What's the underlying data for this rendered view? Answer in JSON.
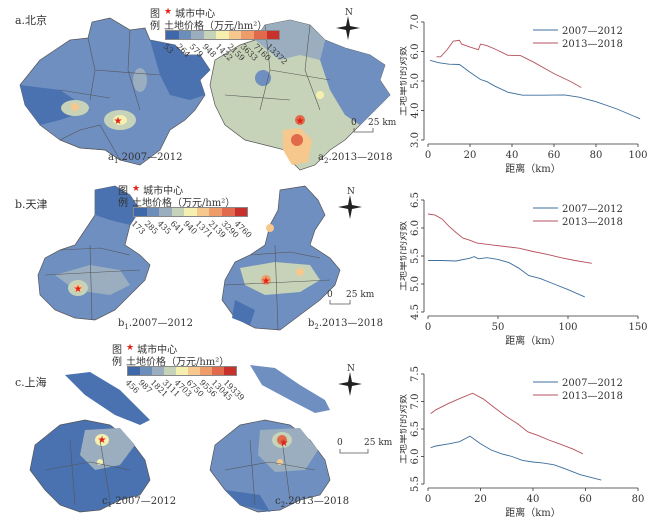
{
  "figure": {
    "rows": [
      {
        "label": "a.北京",
        "map_captions": [
          {
            "prefix": "a",
            "sub": "1",
            "text": ".2007—2012"
          },
          {
            "prefix": "a",
            "sub": "2",
            "text": ".2013—2018"
          }
        ],
        "legend": {
          "title_char_1": "图",
          "title_char_2": "例",
          "center_label": "城市中心",
          "price_label": "土地价格（万元/hm²）",
          "breaks": [
            "53",
            "264",
            "579",
            "948",
            "1422",
            "2159",
            "3633",
            "7160",
            "13372"
          ]
        },
        "scale": {
          "zero": "0",
          "dist": "25 km"
        },
        "north": "N"
      },
      {
        "label": "b.天津",
        "map_captions": [
          {
            "prefix": "b",
            "sub": "1",
            "text": ".2007—2012"
          },
          {
            "prefix": "b",
            "sub": "2",
            "text": ".2013—2018"
          }
        ],
        "legend": {
          "title_char_1": "图",
          "title_char_2": "例",
          "center_label": "城市中心",
          "price_label": "土地价格（万元/hm²）",
          "breaks": [
            "173",
            "285",
            "435",
            "641",
            "940",
            "1371",
            "2139",
            "3290",
            "4760"
          ]
        },
        "scale": {
          "zero": "0",
          "dist": "25 km"
        },
        "north": "N"
      },
      {
        "label": "c.上海",
        "map_captions": [
          {
            "prefix": "c",
            "sub": "1",
            "text": ".2007—2012"
          },
          {
            "prefix": "c",
            "sub": "2",
            "text": ".2013—2018"
          }
        ],
        "legend": {
          "title_char_1": "图",
          "title_char_2": "例",
          "center_label": "城市中心",
          "price_label": "土地价格（万元/hm²）",
          "breaks": [
            "456",
            "987",
            "1821",
            "3111",
            "4703",
            "6750",
            "9556",
            "13045",
            "19339"
          ]
        },
        "scale": {
          "zero": "0",
          "dist": "25 km"
        },
        "north": "N"
      }
    ],
    "ramp_colors": [
      "#3f68aa",
      "#6d8dbb",
      "#9aaebf",
      "#c7d3b8",
      "#f5f0b0",
      "#f6c88e",
      "#ef9c6b",
      "#e06a4b",
      "#c8312b"
    ],
    "series_colors": {
      "2007—2012": "#3d6e9e",
      "2013—2018": "#b5525e"
    }
  },
  "chart_data": [
    {
      "type": "line",
      "city": "北京",
      "xlabel": "距离（km）",
      "ylabel": "土地单价的对数",
      "xlim": [
        0,
        100
      ],
      "ylim": [
        3.0,
        7.0
      ],
      "xticks": [
        "0",
        "20",
        "40",
        "60",
        "80",
        "100"
      ],
      "yticks": [
        "3.0",
        "4.0",
        "5.0",
        "6.0",
        "7.0"
      ],
      "legend_position": "top-right",
      "grid": false,
      "series": [
        {
          "name": "2007—2012",
          "x": [
            1,
            5,
            10,
            15,
            20,
            25,
            28,
            32,
            38,
            45,
            55,
            65,
            72,
            80,
            90,
            101
          ],
          "y": [
            5.7,
            5.62,
            5.57,
            5.56,
            5.3,
            5.05,
            4.98,
            4.82,
            4.62,
            4.52,
            4.52,
            4.53,
            4.45,
            4.3,
            4.05,
            3.72
          ]
        },
        {
          "name": "2013—2018",
          "x": [
            4,
            6,
            9,
            12,
            15,
            16,
            20,
            24,
            25,
            28,
            32,
            38,
            44,
            50,
            60,
            68,
            73
          ],
          "y": [
            5.82,
            5.82,
            6.05,
            6.35,
            6.38,
            6.25,
            6.15,
            6.06,
            6.25,
            6.2,
            6.08,
            5.87,
            5.86,
            5.65,
            5.25,
            4.98,
            4.78
          ]
        }
      ]
    },
    {
      "type": "line",
      "city": "天津",
      "xlabel": "距离（km）",
      "ylabel": "土地单价的对数",
      "xlim": [
        0,
        150
      ],
      "ylim": [
        4.5,
        6.5
      ],
      "xticks": [
        "0",
        "50",
        "100",
        "150"
      ],
      "yticks": [
        "4.5",
        "5.0",
        "5.5",
        "6.0",
        "6.5"
      ],
      "legend_position": "top-right",
      "grid": false,
      "series": [
        {
          "name": "2007—2012",
          "x": [
            0,
            10,
            20,
            30,
            33,
            36,
            42,
            50,
            58,
            65,
            72,
            80,
            90,
            100,
            112
          ],
          "y": [
            5.42,
            5.42,
            5.41,
            5.46,
            5.49,
            5.45,
            5.47,
            5.44,
            5.38,
            5.28,
            5.15,
            5.1,
            5.0,
            4.9,
            4.77
          ]
        },
        {
          "name": "2013—2018",
          "x": [
            0,
            5,
            10,
            15,
            20,
            25,
            30,
            35,
            45,
            55,
            65,
            75,
            85,
            95,
            105,
            117
          ],
          "y": [
            6.25,
            6.23,
            6.16,
            6.03,
            5.92,
            5.82,
            5.78,
            5.73,
            5.7,
            5.67,
            5.64,
            5.58,
            5.53,
            5.47,
            5.42,
            5.37
          ]
        }
      ]
    },
    {
      "type": "line",
      "city": "上海",
      "xlabel": "距离（km）",
      "ylabel": "土地单价的对数",
      "xlim": [
        0,
        80
      ],
      "ylim": [
        5.5,
        7.5
      ],
      "xticks": [
        "0",
        "20",
        "40",
        "60",
        "80"
      ],
      "yticks": [
        "5.5",
        "6.0",
        "6.5",
        "7.0",
        "7.5"
      ],
      "legend_position": "top-right",
      "grid": false,
      "series": [
        {
          "name": "2007—2012",
          "x": [
            1,
            3,
            8,
            12,
            16,
            20,
            24,
            28,
            32,
            36,
            40,
            44,
            48,
            52,
            58,
            66
          ],
          "y": [
            6.16,
            6.19,
            6.23,
            6.27,
            6.37,
            6.23,
            6.12,
            6.05,
            6.0,
            5.93,
            5.9,
            5.88,
            5.85,
            5.78,
            5.67,
            5.57
          ]
        },
        {
          "name": "2013—2018",
          "x": [
            1,
            3,
            8,
            13,
            17,
            21,
            25,
            30,
            34,
            38,
            42,
            46,
            50,
            55,
            59
          ],
          "y": [
            6.78,
            6.85,
            6.97,
            7.07,
            7.15,
            7.05,
            6.9,
            6.72,
            6.6,
            6.45,
            6.38,
            6.3,
            6.23,
            6.14,
            6.05
          ]
        }
      ]
    }
  ]
}
